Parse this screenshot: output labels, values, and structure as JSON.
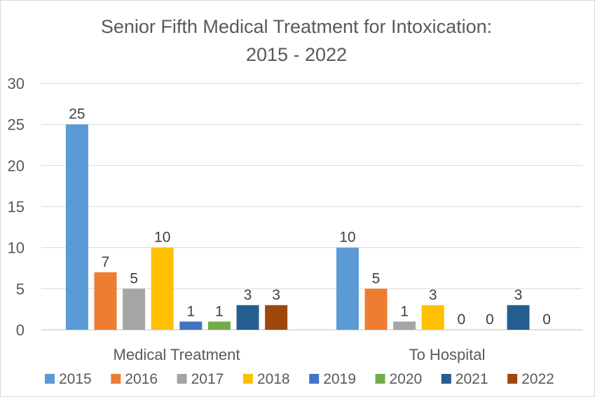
{
  "chart_data": {
    "type": "bar",
    "title_lines": [
      "Senior Fifth Medical Treatment for Intoxication:",
      "2015 - 2022"
    ],
    "categories": [
      "Medical Treatment",
      "To Hospital"
    ],
    "series": [
      {
        "name": "2015",
        "color": "#5b9bd5",
        "values": [
          25,
          10
        ]
      },
      {
        "name": "2016",
        "color": "#ed7d31",
        "values": [
          7,
          5
        ]
      },
      {
        "name": "2017",
        "color": "#a5a5a5",
        "values": [
          5,
          1
        ]
      },
      {
        "name": "2018",
        "color": "#ffc000",
        "values": [
          10,
          3
        ]
      },
      {
        "name": "2019",
        "color": "#4472c4",
        "values": [
          1,
          0
        ]
      },
      {
        "name": "2020",
        "color": "#70ad47",
        "values": [
          1,
          0
        ]
      },
      {
        "name": "2021",
        "color": "#255e91",
        "values": [
          3,
          3
        ]
      },
      {
        "name": "2022",
        "color": "#9e480e",
        "values": [
          3,
          0
        ]
      }
    ],
    "ylim": [
      0,
      30
    ],
    "yticks": [
      0,
      5,
      10,
      15,
      20,
      25,
      30
    ],
    "grid": true,
    "data_labels": true,
    "legend_position": "bottom"
  }
}
